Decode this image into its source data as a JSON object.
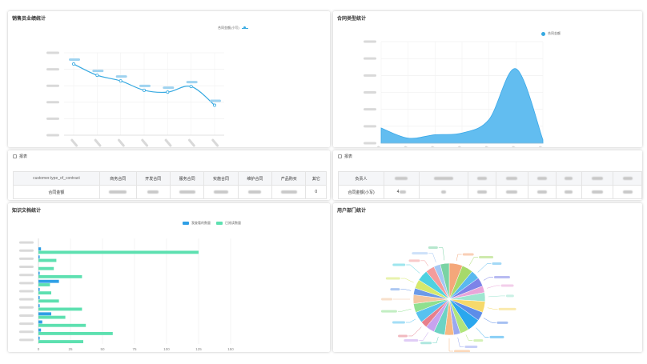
{
  "panels": {
    "sales": {
      "title": "销售员业绩统计",
      "legend": "合同金额(小写)",
      "color": "#36a9e1"
    },
    "contract_type": {
      "title": "合同类型统计",
      "legend": "合同金额",
      "color": "#5ab9ef"
    },
    "report_left": {
      "title": "报表",
      "headers": [
        "customer.type_of_contract",
        "商务合同",
        "开发合同",
        "服务合同",
        "实施合同",
        "维护合同",
        "产品购买",
        "其它"
      ],
      "row_label": "合同金额",
      "last_value": "0"
    },
    "report_right": {
      "title": "报表",
      "row_labels": [
        "负责人",
        "合同金额(小写)"
      ],
      "value_prefix": "4"
    },
    "knowledge": {
      "title": "知识文档统计",
      "legend": [
        "我查看的数量",
        "已阅读数量"
      ],
      "colors": [
        "#2f9fe6",
        "#5de0b0"
      ]
    },
    "departments": {
      "title": "用户部门统计"
    }
  },
  "chart_data": [
    {
      "type": "line",
      "title": "销售员业绩统计",
      "series": [
        {
          "name": "合同金额(小写)",
          "values": [
            19,
            16,
            14.5,
            12,
            11.5,
            13,
            8
          ]
        }
      ],
      "categories": [
        "",
        "",
        "",
        "",
        "",
        "",
        ""
      ],
      "y_tick_count": 6,
      "ylim": [
        0,
        22
      ],
      "grid": true,
      "legend_position": "top-right"
    },
    {
      "type": "area",
      "title": "合同类型统计",
      "series": [
        {
          "name": "合同金额",
          "values": [
            9,
            3,
            5,
            6,
            14,
            44,
            2
          ]
        }
      ],
      "categories": [
        "",
        "",
        "",
        "",
        "",
        "",
        ""
      ],
      "ylim": [
        0,
        60
      ],
      "grid": true,
      "legend_position": "top-right"
    },
    {
      "type": "bar",
      "orientation": "horizontal",
      "title": "知识文档统计",
      "series": [
        {
          "name": "我查看的数量",
          "values": [
            0,
            2,
            1,
            0,
            1,
            16,
            1,
            1,
            1,
            10,
            3,
            2,
            1
          ]
        },
        {
          "name": "已阅读数量",
          "values": [
            0,
            125,
            14,
            12,
            34,
            9,
            10,
            16,
            34,
            21,
            37,
            58,
            35
          ]
        }
      ],
      "categories": [
        "",
        "",
        "",
        "",
        "",
        "",
        "",
        "",
        "",
        "",
        "",
        "",
        ""
      ],
      "xticks": [
        "0",
        "25",
        "50",
        "75",
        "100",
        "125",
        "150"
      ],
      "xlim": [
        0,
        150
      ],
      "grid": true,
      "legend_position": "top-right"
    },
    {
      "type": "pie",
      "title": "用户部门统计",
      "slices": [
        {
          "value": 6,
          "color": "#f4a77a"
        },
        {
          "value": 5,
          "color": "#a6d96a"
        },
        {
          "value": 4,
          "color": "#5ab9ef"
        },
        {
          "value": 4,
          "color": "#7d83e8"
        },
        {
          "value": 3,
          "color": "#e9a6d9"
        },
        {
          "value": 4,
          "color": "#9fe6d0"
        },
        {
          "value": 5,
          "color": "#f6d96b"
        },
        {
          "value": 4,
          "color": "#5d8de8"
        },
        {
          "value": 6,
          "color": "#2aa7ee"
        },
        {
          "value": 4,
          "color": "#b0e57c"
        },
        {
          "value": 3,
          "color": "#9aa8f0"
        },
        {
          "value": 4,
          "color": "#f7b882"
        },
        {
          "value": 5,
          "color": "#6dd3c4"
        },
        {
          "value": 4,
          "color": "#c7a3ef"
        },
        {
          "value": 3,
          "color": "#e87f8c"
        },
        {
          "value": 5,
          "color": "#58c2ef"
        },
        {
          "value": 4,
          "color": "#8fe08f"
        },
        {
          "value": 4,
          "color": "#f3c6a0"
        },
        {
          "value": 3,
          "color": "#6a9ae8"
        },
        {
          "value": 4,
          "color": "#d6e96b"
        },
        {
          "value": 5,
          "color": "#4fd1e0"
        },
        {
          "value": 4,
          "color": "#f49c9c"
        },
        {
          "value": 3,
          "color": "#a4c8f4"
        },
        {
          "value": 4,
          "color": "#7ad3a4"
        }
      ]
    }
  ]
}
